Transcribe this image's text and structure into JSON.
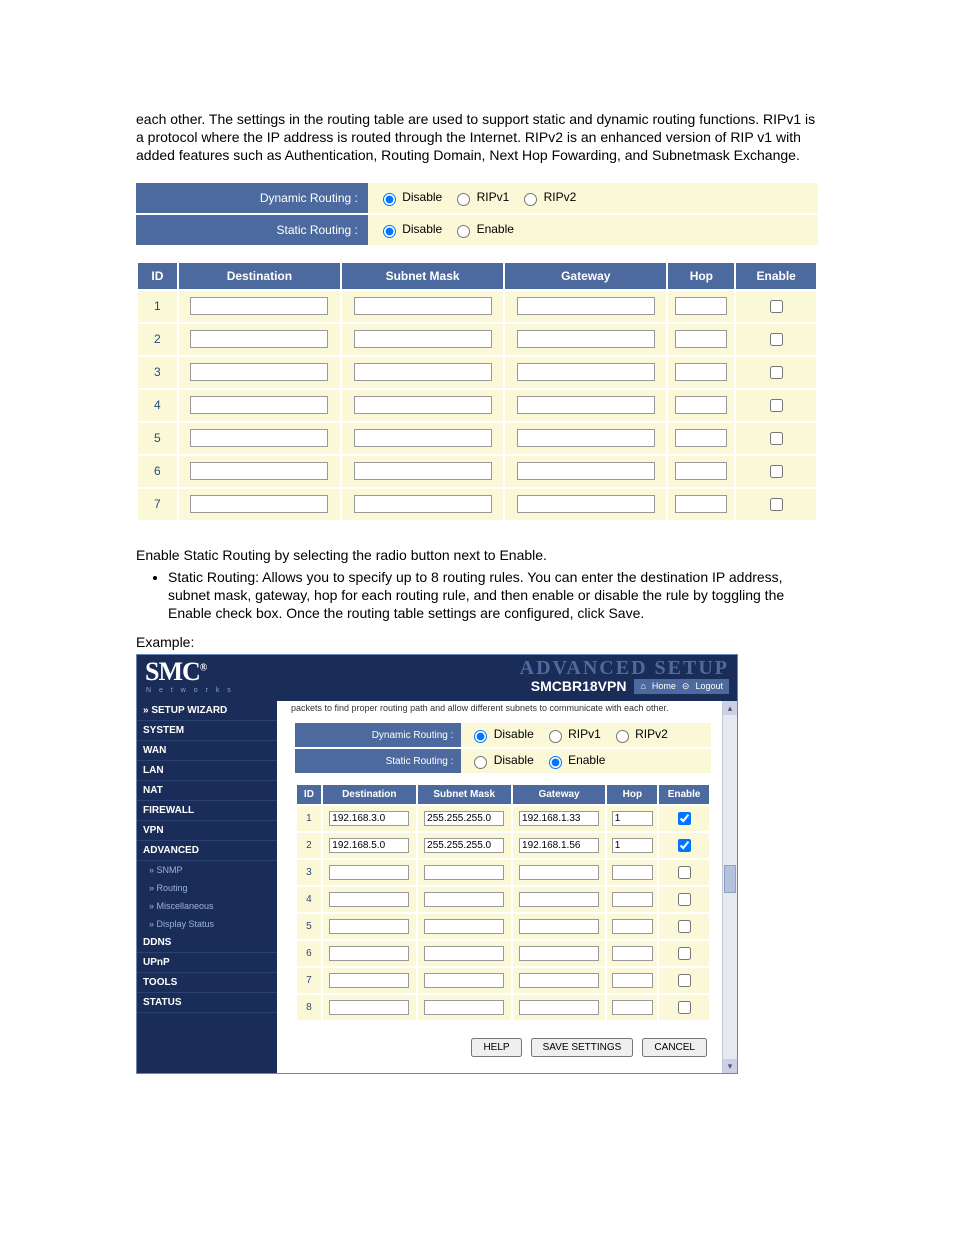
{
  "intro": "each other. The settings in the routing table are used to support static and dynamic routing functions. RIPv1 is a protocol where the IP address is routed through the Internet. RIPv2 is an enhanced version of RIP v1 with added features such as Authentication, Routing Domain, Next Hop Fowarding, and Subnetmask Exchange.",
  "panel1": {
    "dyn_label": "Dynamic Routing :",
    "dyn_options": [
      "Disable",
      "RIPv1",
      "RIPv2"
    ],
    "dyn_selected": "Disable",
    "stat_label": "Static Routing :",
    "stat_options": [
      "Disable",
      "Enable"
    ],
    "stat_selected": "Disable",
    "columns": [
      "ID",
      "Destination",
      "Subnet Mask",
      "Gateway",
      "Hop",
      "Enable"
    ],
    "rows": [
      {
        "id": "1",
        "dest": "",
        "mask": "",
        "gw": "",
        "hop": "",
        "enable": false
      },
      {
        "id": "2",
        "dest": "",
        "mask": "",
        "gw": "",
        "hop": "",
        "enable": false
      },
      {
        "id": "3",
        "dest": "",
        "mask": "",
        "gw": "",
        "hop": "",
        "enable": false
      },
      {
        "id": "4",
        "dest": "",
        "mask": "",
        "gw": "",
        "hop": "",
        "enable": false
      },
      {
        "id": "5",
        "dest": "",
        "mask": "",
        "gw": "",
        "hop": "",
        "enable": false
      },
      {
        "id": "6",
        "dest": "",
        "mask": "",
        "gw": "",
        "hop": "",
        "enable": false
      },
      {
        "id": "7",
        "dest": "",
        "mask": "",
        "gw": "",
        "hop": "",
        "enable": false
      }
    ]
  },
  "post": {
    "line": "Enable Static Routing by selecting the radio button next to Enable.",
    "bullet": "Static Routing: Allows you to specify up to 8 routing rules. You can enter the destination IP address, subnet mask, gateway, hop for each routing rule, and then enable or disable the rule by toggling the Enable check box. Once the routing table settings are configured, click Save.",
    "example": "Example:"
  },
  "smc": {
    "logo": "SMC",
    "logo_reg": "®",
    "logo_sub": "N e t w o r k s",
    "adv": "ADVANCED SETUP",
    "model": "SMCBR18VPN",
    "home": "Home",
    "logout": "Logout",
    "sidebar": [
      {
        "label": "» SETUP WIZARD",
        "sub": false
      },
      {
        "label": "SYSTEM",
        "sub": false
      },
      {
        "label": "WAN",
        "sub": false
      },
      {
        "label": "LAN",
        "sub": false
      },
      {
        "label": "NAT",
        "sub": false
      },
      {
        "label": "FIREWALL",
        "sub": false
      },
      {
        "label": "VPN",
        "sub": false
      },
      {
        "label": "ADVANCED",
        "sub": false
      },
      {
        "label": "» SNMP",
        "sub": true
      },
      {
        "label": "» Routing",
        "sub": true
      },
      {
        "label": "» Miscellaneous",
        "sub": true
      },
      {
        "label": "» Display Status",
        "sub": true
      },
      {
        "label": "DDNS",
        "sub": false
      },
      {
        "label": "UPnP",
        "sub": false
      },
      {
        "label": "TOOLS",
        "sub": false
      },
      {
        "label": "STATUS",
        "sub": false
      }
    ],
    "toptext": "packets to find proper routing path and allow different subnets to communicate with each other.",
    "panel2": {
      "dyn_label": "Dynamic Routing :",
      "dyn_options": [
        "Disable",
        "RIPv1",
        "RIPv2"
      ],
      "dyn_selected": "Disable",
      "stat_label": "Static Routing :",
      "stat_options": [
        "Disable",
        "Enable"
      ],
      "stat_selected": "Enable",
      "columns": [
        "ID",
        "Destination",
        "Subnet Mask",
        "Gateway",
        "Hop",
        "Enable"
      ],
      "rows": [
        {
          "id": "1",
          "dest": "192.168.3.0",
          "mask": "255.255.255.0",
          "gw": "192.168.1.33",
          "hop": "1",
          "enable": true
        },
        {
          "id": "2",
          "dest": "192.168.5.0",
          "mask": "255.255.255.0",
          "gw": "192.168.1.56",
          "hop": "1",
          "enable": true
        },
        {
          "id": "3",
          "dest": "",
          "mask": "",
          "gw": "",
          "hop": "",
          "enable": false
        },
        {
          "id": "4",
          "dest": "",
          "mask": "",
          "gw": "",
          "hop": "",
          "enable": false
        },
        {
          "id": "5",
          "dest": "",
          "mask": "",
          "gw": "",
          "hop": "",
          "enable": false
        },
        {
          "id": "6",
          "dest": "",
          "mask": "",
          "gw": "",
          "hop": "",
          "enable": false
        },
        {
          "id": "7",
          "dest": "",
          "mask": "",
          "gw": "",
          "hop": "",
          "enable": false
        },
        {
          "id": "8",
          "dest": "",
          "mask": "",
          "gw": "",
          "hop": "",
          "enable": false
        }
      ]
    },
    "buttons": {
      "help": "HELP",
      "save": "SAVE SETTINGS",
      "cancel": "CANCEL"
    }
  }
}
